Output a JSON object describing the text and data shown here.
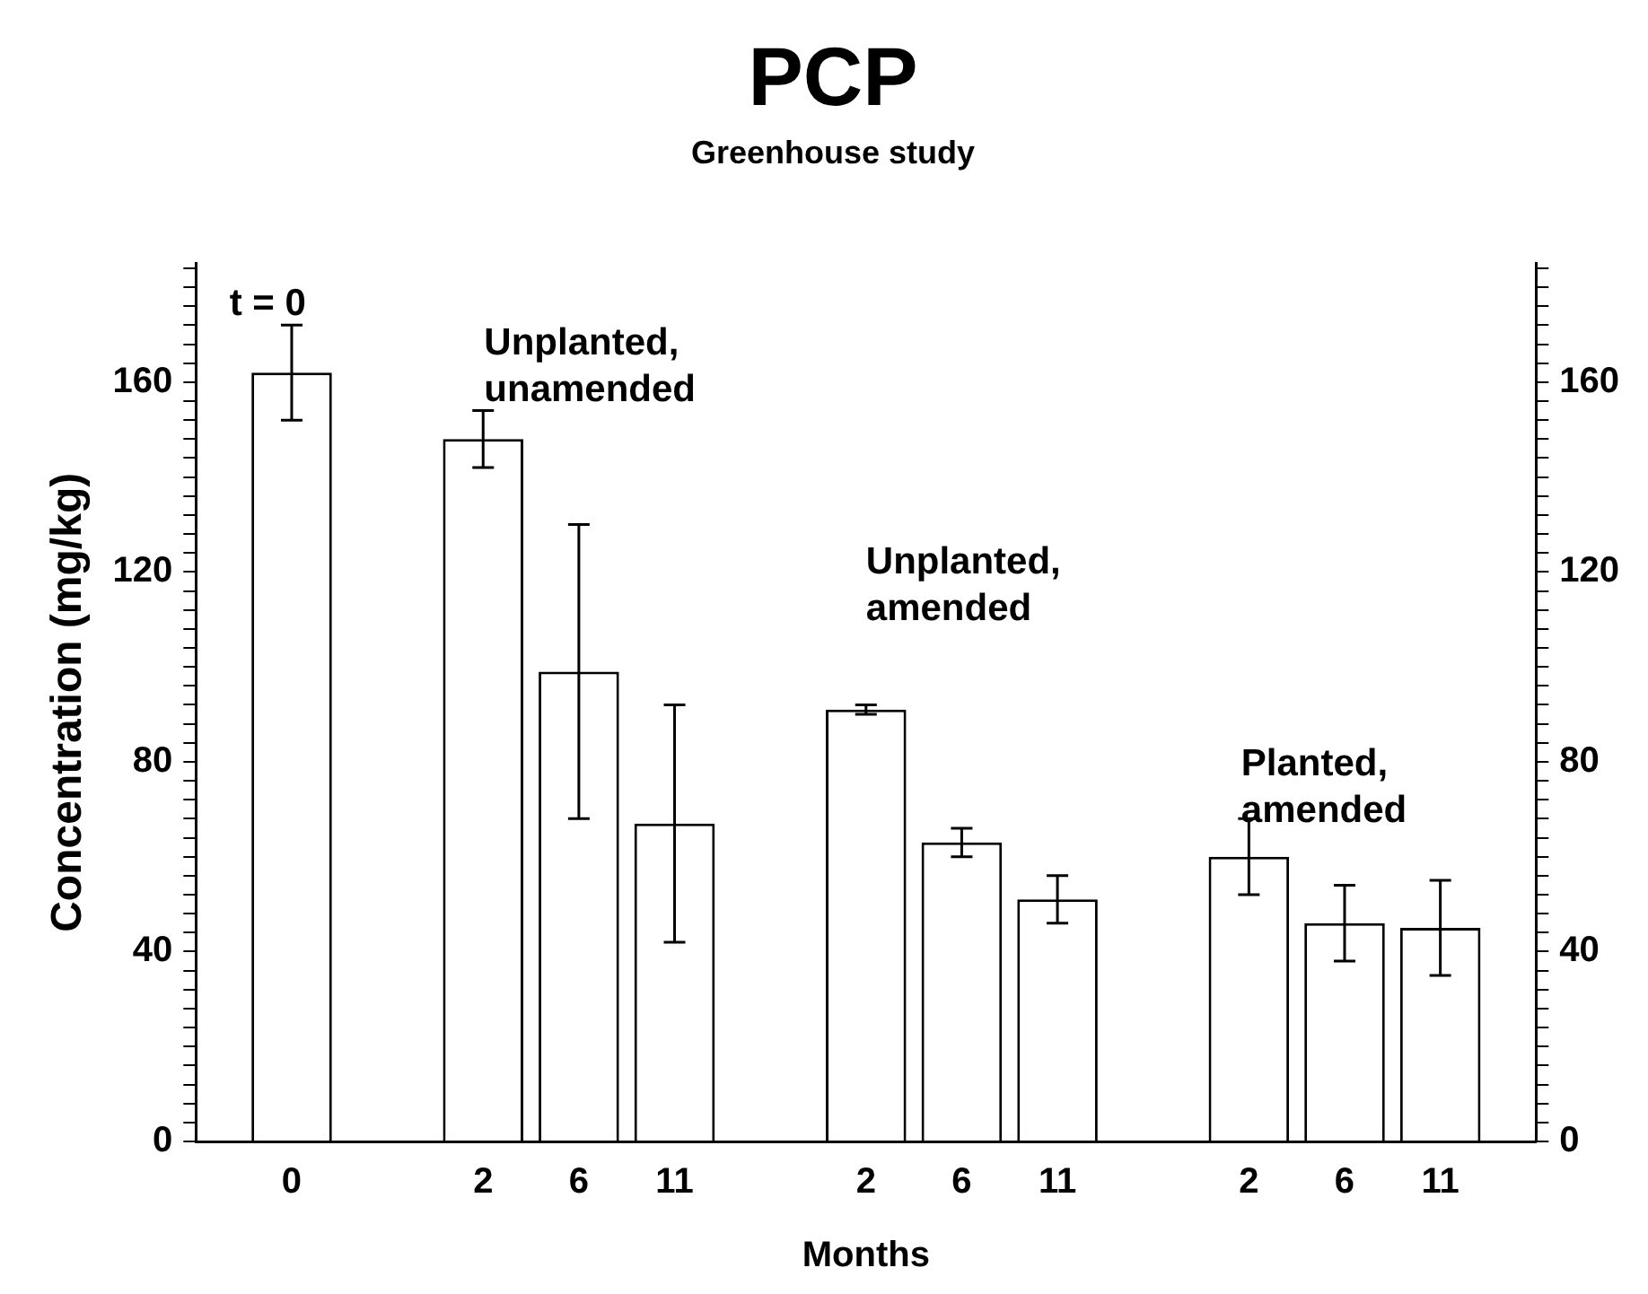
{
  "chart_data": {
    "type": "bar",
    "title": "PCP",
    "subtitle": "Greenhouse study",
    "xlabel": "Months",
    "ylabel": "Concentration (mg/kg)",
    "categories": [
      null,
      "0",
      null,
      "2",
      "6",
      "11",
      null,
      "2",
      "6",
      "11",
      null,
      "2",
      "6",
      "11",
      null
    ],
    "values": [
      null,
      162,
      null,
      148,
      99,
      67,
      null,
      91,
      63,
      51,
      null,
      60,
      46,
      45,
      null
    ],
    "errors": [
      null,
      10,
      null,
      6,
      31,
      25,
      null,
      1,
      3,
      5,
      null,
      8,
      8,
      10,
      null
    ],
    "color": "#ffffff",
    "ylim": [
      0,
      185
    ],
    "yticks": [
      0,
      {
        "value": 4,
        "label": null
      },
      {
        "value": 8,
        "label": null
      },
      {
        "value": 12,
        "label": null
      },
      {
        "value": 16,
        "label": null
      },
      {
        "value": 20,
        "label": null
      },
      {
        "value": 24,
        "label": null
      },
      {
        "value": 28,
        "label": null
      },
      {
        "value": 32,
        "label": null
      },
      {
        "value": 36,
        "label": null
      },
      40,
      {
        "value": 44,
        "label": null
      },
      {
        "value": 48,
        "label": null
      },
      {
        "value": 52,
        "label": null
      },
      {
        "value": 56,
        "label": null
      },
      {
        "value": 60,
        "label": null
      },
      {
        "value": 64,
        "label": null
      },
      {
        "value": 68,
        "label": null
      },
      {
        "value": 72,
        "label": null
      },
      {
        "value": 76,
        "label": null
      },
      80,
      {
        "value": 84,
        "label": null
      },
      {
        "value": 88,
        "label": null
      },
      {
        "value": 92,
        "label": null
      },
      {
        "value": 96,
        "label": null
      },
      {
        "value": 100,
        "label": null
      },
      {
        "value": 104,
        "label": null
      },
      {
        "value": 108,
        "label": null
      },
      {
        "value": 112,
        "label": null
      },
      {
        "value": 116,
        "label": null
      },
      120,
      {
        "value": 124,
        "label": null
      },
      {
        "value": 128,
        "label": null
      },
      {
        "value": 132,
        "label": null
      },
      {
        "value": 136,
        "label": null
      },
      {
        "value": 140,
        "label": null
      },
      {
        "value": 144,
        "label": null
      },
      {
        "value": 148,
        "label": null
      },
      {
        "value": 152,
        "label": null
      },
      {
        "value": 156,
        "label": null
      },
      160,
      {
        "value": 164,
        "label": null
      },
      {
        "value": 168,
        "label": null
      },
      {
        "value": 172,
        "label": null
      },
      {
        "value": 176,
        "label": null
      },
      {
        "value": 180,
        "label": null
      },
      {
        "value": 184,
        "label": null
      }
    ],
    "y2lim": [
      0,
      185
    ],
    "y2ticks": [
      0,
      {
        "value": 4,
        "label": null
      },
      {
        "value": 8,
        "label": null
      },
      {
        "value": 12,
        "label": null
      },
      {
        "value": 16,
        "label": null
      },
      {
        "value": 20,
        "label": null
      },
      {
        "value": 24,
        "label": null
      },
      {
        "value": 28,
        "label": null
      },
      {
        "value": 32,
        "label": null
      },
      {
        "value": 36,
        "label": null
      },
      40,
      {
        "value": 44,
        "label": null
      },
      {
        "value": 48,
        "label": null
      },
      {
        "value": 52,
        "label": null
      },
      {
        "value": 56,
        "label": null
      },
      {
        "value": 60,
        "label": null
      },
      {
        "value": 64,
        "label": null
      },
      {
        "value": 68,
        "label": null
      },
      {
        "value": 72,
        "label": null
      },
      {
        "value": 76,
        "label": null
      },
      80,
      {
        "value": 84,
        "label": null
      },
      {
        "value": 88,
        "label": null
      },
      {
        "value": 92,
        "label": null
      },
      {
        "value": 96,
        "label": null
      },
      {
        "value": 100,
        "label": null
      },
      {
        "value": 104,
        "label": null
      },
      {
        "value": 108,
        "label": null
      },
      {
        "value": 112,
        "label": null
      },
      {
        "value": 116,
        "label": null
      },
      120,
      {
        "value": 124,
        "label": null
      },
      {
        "value": 128,
        "label": null
      },
      {
        "value": 132,
        "label": null
      },
      {
        "value": 136,
        "label": null
      },
      {
        "value": 140,
        "label": null
      },
      {
        "value": 144,
        "label": null
      },
      {
        "value": 148,
        "label": null
      },
      {
        "value": 152,
        "label": null
      },
      {
        "value": 156,
        "label": null
      },
      160,
      {
        "value": 164,
        "label": null
      },
      {
        "value": 168,
        "label": null
      },
      {
        "value": 172,
        "label": null
      },
      {
        "value": 176,
        "label": null
      },
      {
        "value": 180,
        "label": null
      },
      {
        "value": 184,
        "label": null
      }
    ],
    "annotations": [
      "t = 0",
      "Unplanted, unamended",
      "Unplanted, amended",
      "Planted, amended"
    ],
    "grid": false,
    "legend": false
  }
}
